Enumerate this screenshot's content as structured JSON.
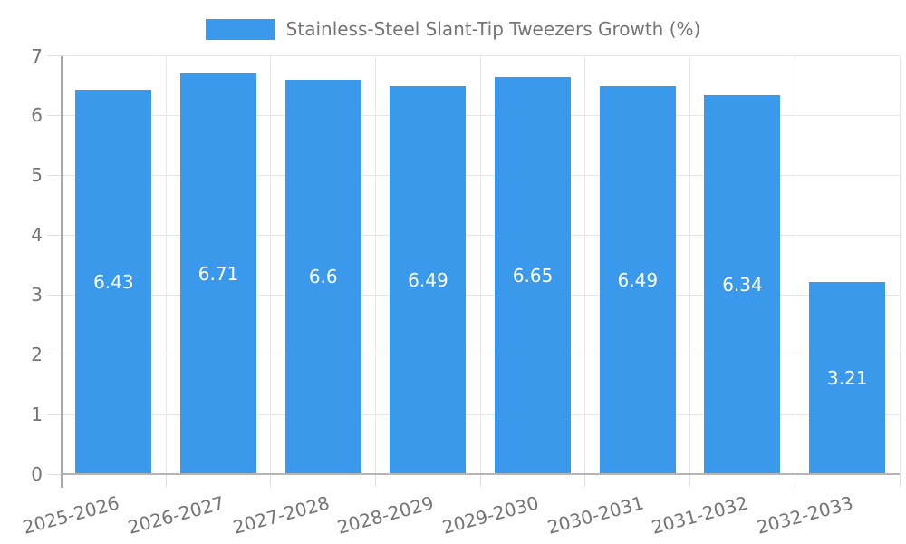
{
  "chart_data": {
    "type": "bar",
    "title": "Stainless-Steel Slant-Tip Tweezers Growth (%)",
    "legend_label": "Stainless-Steel Slant-Tip Tweezers Growth (%)",
    "legend_position": "top",
    "categories": [
      "2025-2026",
      "2026-2027",
      "2027-2028",
      "2028-2029",
      "2029-2030",
      "2030-2031",
      "2031-2032",
      "2032-2033"
    ],
    "values": [
      6.43,
      6.71,
      6.6,
      6.49,
      6.65,
      6.49,
      6.34,
      3.21
    ],
    "value_labels": [
      "6.43",
      "6.71",
      "6.6",
      "6.49",
      "6.65",
      "6.49",
      "6.34",
      "3.21"
    ],
    "xlabel": "",
    "ylabel": "",
    "ylim": [
      0,
      7
    ],
    "yticks": [
      0,
      1,
      2,
      3,
      4,
      5,
      6,
      7
    ],
    "ytick_labels": [
      "0",
      "1",
      "2",
      "3",
      "4",
      "5",
      "6",
      "7"
    ],
    "grid": true,
    "colors": {
      "bar": "#3B99EC",
      "bar_label": "#ffffff",
      "text": "#757575",
      "gridline": "#e6e6e6",
      "tick": "#e0e0e0",
      "axis_y": "#a8a8a8",
      "axis_x": "#b5b5b5",
      "background": "#ffffff"
    }
  }
}
